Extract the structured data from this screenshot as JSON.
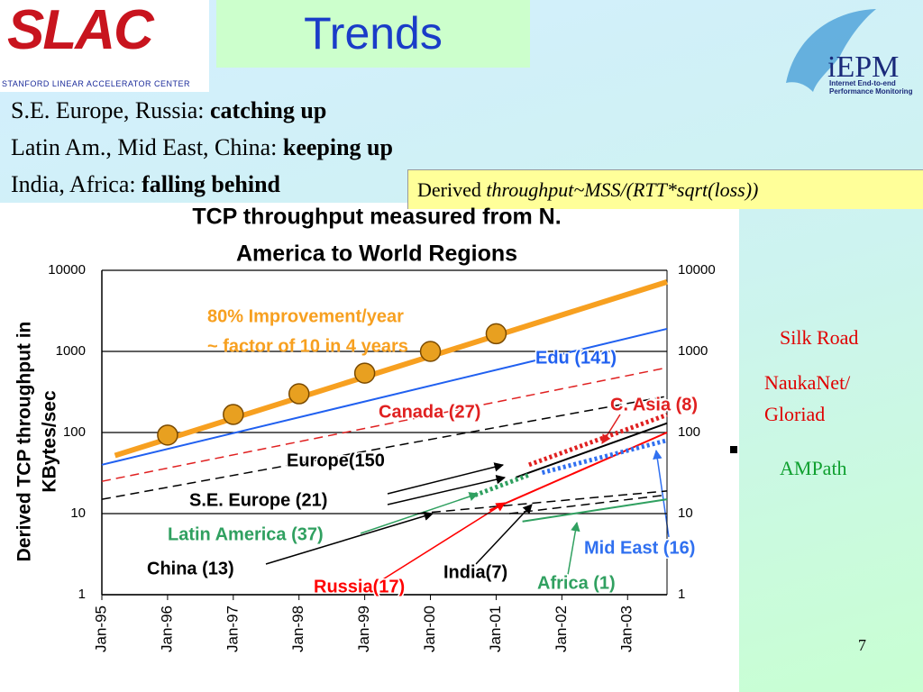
{
  "slide": {
    "title": "Trends",
    "logo_left": {
      "name": "SLAC",
      "subtitle": "Stanford Linear Accelerator Center"
    },
    "logo_right": {
      "name": "iEPM",
      "line1": "Internet End-to-end",
      "line2": "Performance Monitoring"
    },
    "bullets": [
      {
        "text": "S.E. Europe, Russia:",
        "emphasis": "catching up"
      },
      {
        "text": "Latin Am., Mid East, China:",
        "emphasis": "keeping up"
      },
      {
        "text": "India, Africa:",
        "emphasis": "falling behind"
      }
    ],
    "formula": {
      "text": "Derived",
      "emphasis": "throughput~MSS/(RTT*sqrt(loss))"
    },
    "side_labels": [
      {
        "text": "Silk Road",
        "color": "#e00000"
      },
      {
        "text": "NaukaNet/",
        "color": "#e00000"
      },
      {
        "text": "Gloriad",
        "color": "#e00000"
      },
      {
        "text": "AMPath",
        "color": "#10a030"
      }
    ],
    "page_number": "7"
  },
  "chart_data": {
    "type": "line",
    "title": [
      "TCP throughput measured from N.",
      "America to World Regions"
    ],
    "y_label": [
      "Derived TCP throughput in",
      "KBytes/sec"
    ],
    "log_y": true,
    "grid": true,
    "ylim": [
      1,
      10000
    ],
    "yticks": [
      1,
      10,
      100,
      1000,
      10000
    ],
    "xlim": [
      1995,
      2003.6
    ],
    "xticks": [
      {
        "value": 1995,
        "label": "Jan-95"
      },
      {
        "value": 1996,
        "label": "Jan-96"
      },
      {
        "value": 1997,
        "label": "Jan-97"
      },
      {
        "value": 1998,
        "label": "Jan-98"
      },
      {
        "value": 1999,
        "label": "Jan-99"
      },
      {
        "value": 2000,
        "label": "Jan-00"
      },
      {
        "value": 2001,
        "label": "Jan-01"
      },
      {
        "value": 2002,
        "label": "Jan-02"
      },
      {
        "value": 2003,
        "label": "Jan-03"
      }
    ],
    "trend": {
      "color": "#f7a020",
      "annotation": [
        "80% Improvement/year",
        "~ factor of 10 in 4 years"
      ],
      "x": [
        1995.2,
        2003.6
      ],
      "values": [
        52,
        7200
      ],
      "points": {
        "x": [
          1996,
          1997,
          1998,
          1999,
          2000,
          2001
        ],
        "values": [
          93,
          167,
          300,
          540,
          1000,
          1650
        ]
      }
    },
    "series": [
      {
        "name": "Edu (141)",
        "color": "#2060f0",
        "style": "solid",
        "x": [
          1995,
          2003.6
        ],
        "values": [
          40,
          1900
        ]
      },
      {
        "name": "Canada (27)",
        "color": "#e02020",
        "style": "dashed",
        "x": [
          1995,
          2003.6
        ],
        "values": [
          25,
          630
        ]
      },
      {
        "name": "C. Asia (8)",
        "color": "#e02020",
        "style": "dotted",
        "x": [
          2001.5,
          2003.6
        ],
        "values": [
          40,
          165
        ]
      },
      {
        "name": "Europe(150",
        "color": "#000000",
        "style": "dashed",
        "x": [
          1995,
          2003.6
        ],
        "values": [
          15,
          280
        ]
      },
      {
        "name": "S.E.  Europe (21)",
        "color": "#000000",
        "style": "solid",
        "x": [
          2001.3,
          2003.6
        ],
        "values": [
          28,
          130
        ]
      },
      {
        "name": "Latin America (37)",
        "color": "#30a060",
        "style": "dotted",
        "x": [
          2000.6,
          2001.5
        ],
        "values": [
          16,
          30
        ]
      },
      {
        "name": "China (13)",
        "color": "#000000",
        "style": "dashed",
        "x": [
          1999.8,
          2003.6
        ],
        "values": [
          10,
          19
        ]
      },
      {
        "name": "Russia(17)",
        "color": "#ff0000",
        "style": "solid",
        "x": [
          2000.9,
          2003.6
        ],
        "values": [
          11,
          100
        ]
      },
      {
        "name": "India(7)",
        "color": "#000000",
        "style": "dashed",
        "x": [
          2001.2,
          2003.6
        ],
        "values": [
          10,
          17
        ]
      },
      {
        "name": "Africa (1)",
        "color": "#30a060",
        "style": "solid",
        "x": [
          2001.4,
          2003.6
        ],
        "values": [
          8,
          15
        ]
      },
      {
        "name": "Mid East (16)",
        "color": "#3070f0",
        "style": "dotted",
        "x": [
          2001.7,
          2003.6
        ],
        "values": [
          32,
          80
        ]
      }
    ]
  }
}
